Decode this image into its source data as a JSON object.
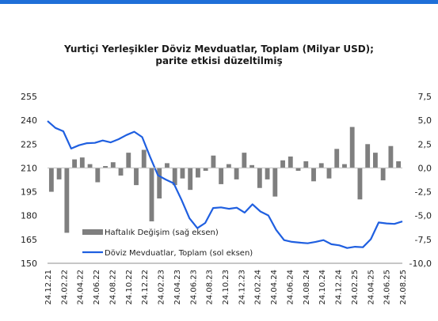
{
  "chart_title_line1": "Yurtiçi Yerleşikler Döviz Mevduatlar, Toplam  (Milyar USD);",
  "chart_title_line2": "parite etkisi düzeltilmiş",
  "chart_data": {
    "type": "line",
    "title": "Yurtiçi Yerleşikler Döviz Mevduatlar, Toplam  (Milyar USD); parite etkisi düzeltilmiş",
    "legend_position": "bottom-left, inside plot",
    "grid": false,
    "colors": {
      "line": "#1f5fe0",
      "bars": "#7f7f7f"
    },
    "x_ticks": [
      "24.12.21",
      "24.02.22",
      "24.04.22",
      "24.06.22",
      "24.08.22",
      "24.10.22",
      "24.12.22",
      "24.02.23",
      "24.04.23",
      "24.06.23",
      "24.08.23",
      "24.10.23",
      "24.12.23",
      "24.02.24",
      "24.04.24",
      "24.06.24",
      "24.08.24",
      "24.10.24",
      "24.12.24",
      "24.02.25",
      "24.04.25",
      "24.06.25",
      "24.08.25"
    ],
    "y_left": {
      "ticks": [
        "255",
        "240",
        "225",
        "210",
        "195",
        "180",
        "165",
        "150"
      ],
      "ylim": [
        150,
        255
      ]
    },
    "y_right": {
      "ticks": [
        "7,5",
        "5,0",
        "2,5",
        "0,0",
        "-2,5",
        "-5,0",
        "-7,5",
        "-10,0"
      ],
      "ylim": [
        -10,
        7.5
      ]
    },
    "series": [
      {
        "name": "Döviz Mevduatlar, Toplam (sol eksen)",
        "kind": "line",
        "axis": "left",
        "values": [
          239.5,
          235.2,
          233.1,
          222.2,
          224.3,
          225.6,
          225.8,
          227.3,
          226.1,
          228.1,
          230.7,
          232.8,
          229.4,
          217.1,
          205.4,
          202.7,
          200.3,
          189.9,
          178.3,
          172.1,
          175.4,
          184.8,
          185.2,
          184.3,
          185.0,
          181.9,
          187.1,
          182.6,
          180.1,
          171.0,
          164.6,
          163.5,
          163.0,
          162.6,
          163.5,
          164.6,
          162.0,
          161.3,
          159.6,
          160.4,
          160.1,
          165.2,
          175.7,
          175.1,
          174.8,
          176.3
        ]
      },
      {
        "name": "Haftalık Değişim (sağ eksen)",
        "kind": "bar",
        "axis": "right",
        "values": [
          -2.5,
          -1.2,
          -6.8,
          0.9,
          1.1,
          0.4,
          -1.5,
          0.2,
          0.6,
          -0.8,
          1.6,
          -1.8,
          1.9,
          -5.6,
          -3.2,
          0.5,
          -1.8,
          -1.1,
          -2.3,
          -1.0,
          -0.3,
          1.3,
          -1.7,
          0.4,
          -1.2,
          1.6,
          0.3,
          -2.1,
          -1.2,
          -3.0,
          0.8,
          1.2,
          -0.3,
          0.7,
          -1.4,
          0.5,
          -1.1,
          2.0,
          0.4,
          4.3,
          -3.3,
          2.5,
          1.6,
          -1.3,
          2.3,
          0.7
        ]
      }
    ]
  }
}
